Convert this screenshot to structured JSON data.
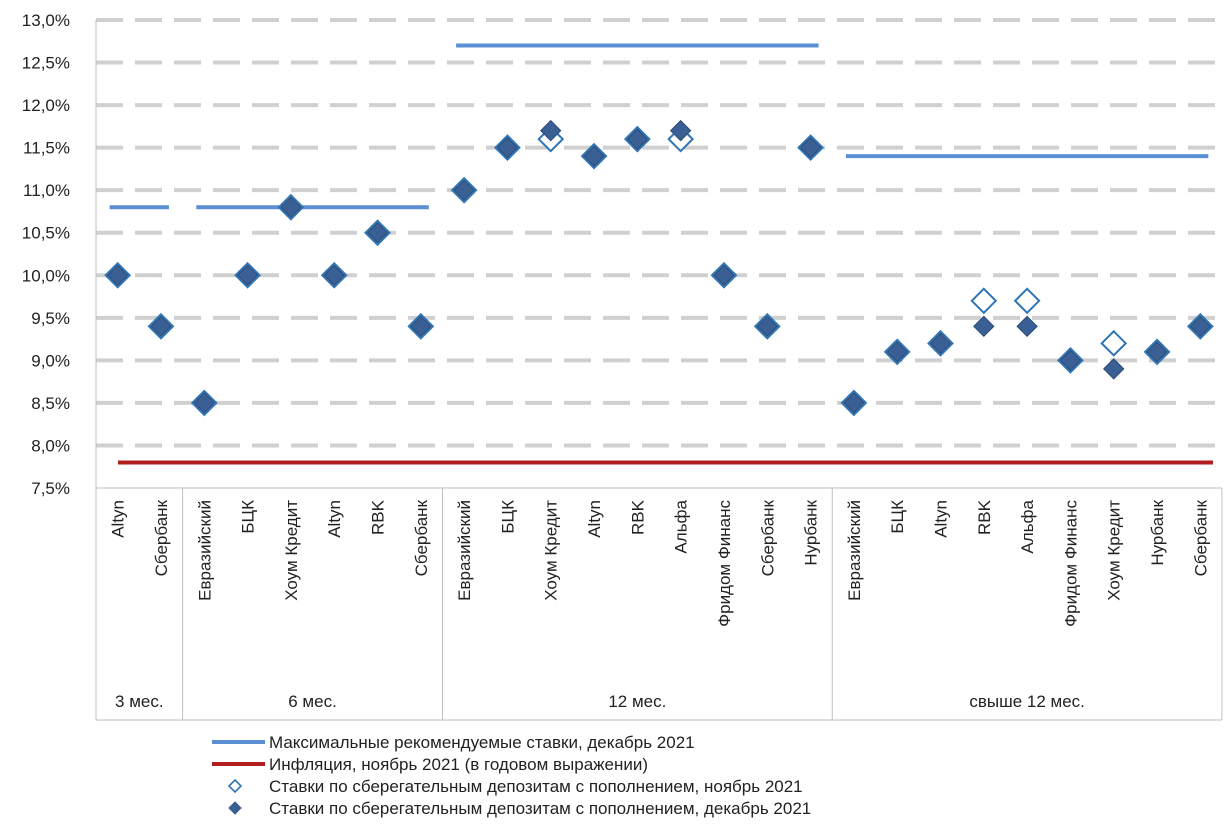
{
  "chart_data": {
    "type": "scatter",
    "y_ticks": [
      "7,5%",
      "8,0%",
      "8,5%",
      "9,0%",
      "9,5%",
      "10,0%",
      "10,5%",
      "11,0%",
      "11,5%",
      "12,0%",
      "12,5%",
      "13,0%"
    ],
    "ylim": [
      7.5,
      13.0
    ],
    "grid": true,
    "groups": [
      {
        "label": "3 мес.",
        "banks": [
          "Altyn",
          "Сбербанк"
        ]
      },
      {
        "label": "6 мес.",
        "banks": [
          "Евразийский",
          "БЦК",
          "Хоум Кредит",
          "Altyn",
          "RBK",
          "Сбербанк"
        ]
      },
      {
        "label": "12 мес.",
        "banks": [
          "Евразийский",
          "БЦК",
          "Хоум Кредит",
          "Altyn",
          "RBK",
          "Альфа",
          "Фридом Финанс",
          "Сбербанк",
          "Нурбанк"
        ]
      },
      {
        "label": "свыше 12 мес.",
        "banks": [
          "Евразийский",
          "БЦК",
          "Altyn",
          "RBK",
          "Альфа",
          "Фридом Финанс",
          "Хоум Кредит",
          "Нурбанк",
          "Сбербанк"
        ]
      }
    ],
    "max_rates": [
      10.8,
      10.8,
      12.7,
      11.4
    ],
    "inflation": 7.8,
    "series": [
      {
        "name": "Ставки по сберегательным депозитам с пополнением, ноябрь 2021",
        "values": [
          10.0,
          9.4,
          8.5,
          10.0,
          10.8,
          10.0,
          10.5,
          9.4,
          11.0,
          11.5,
          11.6,
          11.4,
          11.6,
          11.6,
          10.0,
          9.4,
          11.5,
          8.5,
          9.1,
          9.2,
          9.7,
          9.7,
          9.0,
          9.2,
          9.1,
          9.4
        ]
      },
      {
        "name": "Ставки по сберегательным депозитам с пополнением, декабрь 2021",
        "values": [
          10.0,
          9.4,
          8.5,
          10.0,
          10.8,
          10.0,
          10.5,
          9.4,
          11.0,
          11.5,
          11.7,
          11.4,
          11.6,
          11.7,
          10.0,
          9.4,
          11.5,
          8.5,
          9.1,
          9.2,
          9.4,
          9.4,
          9.0,
          8.9,
          9.1,
          9.4
        ]
      }
    ],
    "legend": [
      {
        "type": "line",
        "color": "#5b8fd4",
        "label": "Максимальные рекомендуемые ставки, декабрь 2021"
      },
      {
        "type": "line",
        "color": "#b01e1e",
        "label": "Инфляция, ноябрь 2021 (в годовом выражении)"
      },
      {
        "type": "open-diamond",
        "color": "#2e75b6",
        "label": "Ставки по сберегательным депозитам с пополнением, ноябрь 2021"
      },
      {
        "type": "filled-diamond",
        "color": "#3a5f94",
        "label": "Ставки по сберегательным депозитам с пополнением, декабрь 2021"
      }
    ],
    "legend_position": "bottom"
  }
}
